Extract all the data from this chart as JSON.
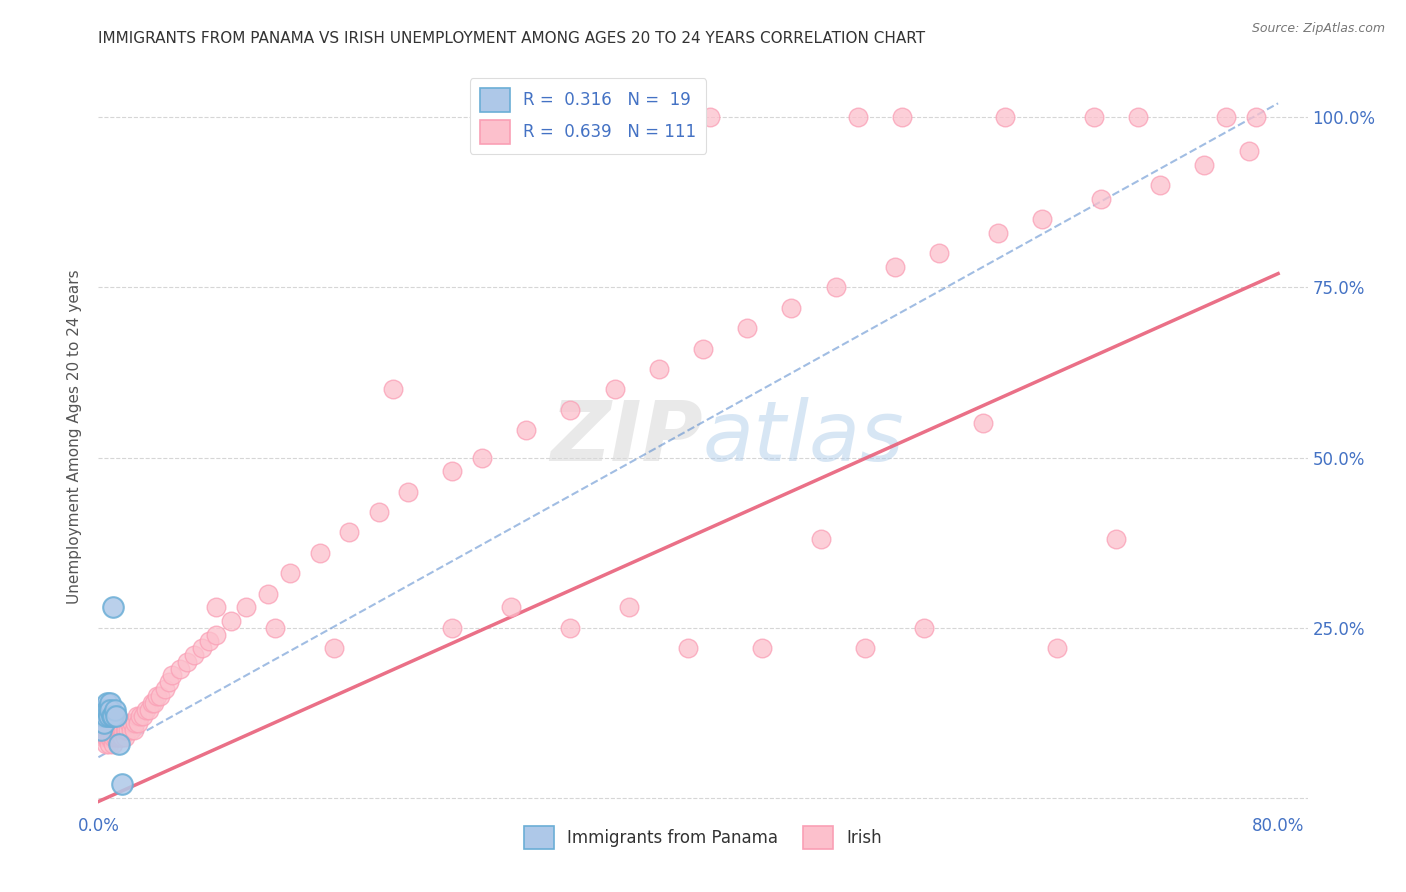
{
  "title": "IMMIGRANTS FROM PANAMA VS IRISH UNEMPLOYMENT AMONG AGES 20 TO 24 YEARS CORRELATION CHART",
  "source": "Source: ZipAtlas.com",
  "ylabel": "Unemployment Among Ages 20 to 24 years",
  "xlim": [
    0.0,
    0.82
  ],
  "ylim": [
    -0.02,
    1.08
  ],
  "watermark_zip": "ZIP",
  "watermark_atlas": "atlas",
  "panama_color": "#6baed6",
  "irish_color": "#fa9fb5",
  "panama_fill": "#aec8e8",
  "irish_fill": "#fcc0cc",
  "trendline_panama_color": "#5588cc",
  "trendline_irish_color": "#e8607a",
  "background_color": "#ffffff",
  "grid_color": "#cccccc",
  "title_color": "#333333",
  "axis_color": "#4472c4",
  "ylabel_color": "#555555",
  "panama_trend_x": [
    0.0,
    0.8
  ],
  "panama_trend_y": [
    0.06,
    1.02
  ],
  "irish_trend_x": [
    0.0,
    0.8
  ],
  "irish_trend_y": [
    -0.005,
    0.77
  ],
  "top_row_irish_x": [
    0.355,
    0.395,
    0.415,
    0.515,
    0.545,
    0.615,
    0.675,
    0.705,
    0.765,
    0.785
  ],
  "top_row_irish_y": [
    1.0,
    1.0,
    1.0,
    1.0,
    1.0,
    1.0,
    1.0,
    1.0,
    1.0,
    1.0
  ],
  "panama_points_x": [
    0.002,
    0.003,
    0.004,
    0.004,
    0.005,
    0.005,
    0.006,
    0.006,
    0.007,
    0.007,
    0.008,
    0.008,
    0.009,
    0.01,
    0.01,
    0.011,
    0.012,
    0.014,
    0.016
  ],
  "panama_points_y": [
    0.1,
    0.12,
    0.11,
    0.13,
    0.13,
    0.12,
    0.14,
    0.13,
    0.13,
    0.12,
    0.14,
    0.13,
    0.12,
    0.28,
    0.12,
    0.13,
    0.12,
    0.08,
    0.02
  ],
  "irish_cluster_x": [
    0.002,
    0.003,
    0.003,
    0.004,
    0.004,
    0.004,
    0.005,
    0.005,
    0.005,
    0.005,
    0.006,
    0.006,
    0.006,
    0.007,
    0.007,
    0.007,
    0.007,
    0.008,
    0.008,
    0.008,
    0.009,
    0.009,
    0.009,
    0.01,
    0.01,
    0.01,
    0.01,
    0.011,
    0.011,
    0.012,
    0.012,
    0.012,
    0.013,
    0.013,
    0.014,
    0.014,
    0.015,
    0.015,
    0.016,
    0.016,
    0.017,
    0.018,
    0.018,
    0.019,
    0.02,
    0.021,
    0.022,
    0.023,
    0.024,
    0.025,
    0.026,
    0.027,
    0.028,
    0.03,
    0.032,
    0.034,
    0.036,
    0.038,
    0.04,
    0.042,
    0.045,
    0.048,
    0.05,
    0.055,
    0.06,
    0.065,
    0.07,
    0.075,
    0.08,
    0.09,
    0.1,
    0.115,
    0.13,
    0.15,
    0.17,
    0.19,
    0.21,
    0.24,
    0.26,
    0.29,
    0.32,
    0.35,
    0.38,
    0.41,
    0.44,
    0.47,
    0.5,
    0.54,
    0.57,
    0.61,
    0.64,
    0.68,
    0.72,
    0.75,
    0.78
  ],
  "irish_cluster_y": [
    0.1,
    0.09,
    0.11,
    0.09,
    0.1,
    0.11,
    0.08,
    0.09,
    0.1,
    0.11,
    0.09,
    0.1,
    0.11,
    0.08,
    0.09,
    0.1,
    0.11,
    0.09,
    0.1,
    0.11,
    0.09,
    0.1,
    0.11,
    0.08,
    0.09,
    0.1,
    0.11,
    0.09,
    0.1,
    0.09,
    0.1,
    0.11,
    0.09,
    0.1,
    0.09,
    0.1,
    0.09,
    0.1,
    0.09,
    0.1,
    0.1,
    0.09,
    0.1,
    0.1,
    0.1,
    0.11,
    0.1,
    0.11,
    0.1,
    0.11,
    0.12,
    0.11,
    0.12,
    0.12,
    0.13,
    0.13,
    0.14,
    0.14,
    0.15,
    0.15,
    0.16,
    0.17,
    0.18,
    0.19,
    0.2,
    0.21,
    0.22,
    0.23,
    0.24,
    0.26,
    0.28,
    0.3,
    0.33,
    0.36,
    0.39,
    0.42,
    0.45,
    0.48,
    0.5,
    0.54,
    0.57,
    0.6,
    0.63,
    0.66,
    0.69,
    0.72,
    0.75,
    0.78,
    0.8,
    0.83,
    0.85,
    0.88,
    0.9,
    0.93,
    0.95
  ],
  "irish_extra_x": [
    0.08,
    0.12,
    0.16,
    0.2,
    0.24,
    0.28,
    0.32,
    0.36,
    0.4,
    0.45,
    0.49,
    0.52,
    0.56,
    0.6,
    0.65,
    0.69
  ],
  "irish_extra_y": [
    0.28,
    0.25,
    0.22,
    0.6,
    0.25,
    0.28,
    0.25,
    0.28,
    0.22,
    0.22,
    0.38,
    0.22,
    0.25,
    0.55,
    0.22,
    0.38
  ]
}
